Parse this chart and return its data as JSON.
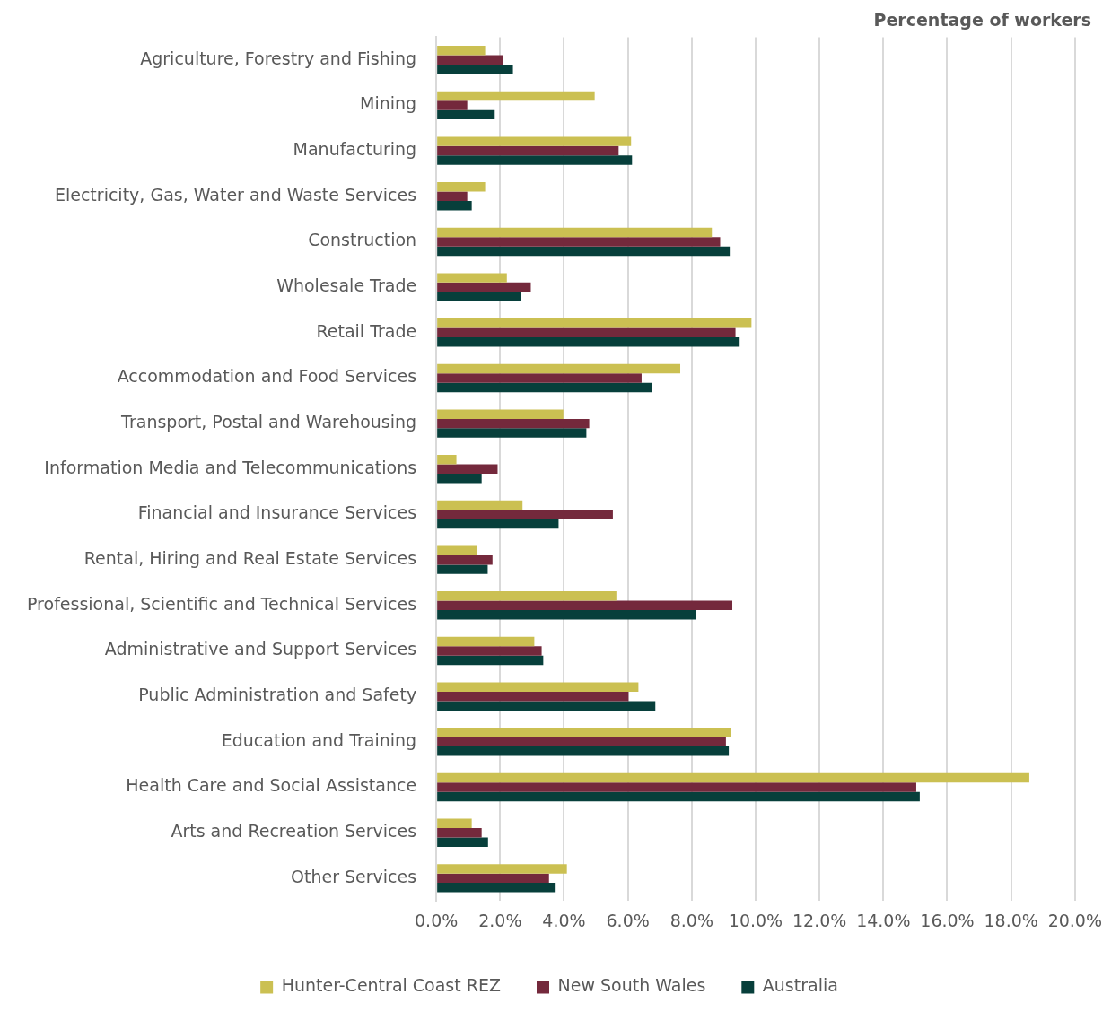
{
  "chart_data": {
    "type": "bar",
    "orientation": "horizontal",
    "title": "Percentage of workers",
    "categories": [
      "Agriculture, Forestry and Fishing",
      "Mining",
      "Manufacturing",
      "Electricity, Gas, Water and Waste Services",
      "Construction",
      "Wholesale Trade",
      "Retail Trade",
      "Accommodation and Food Services",
      "Transport, Postal and Warehousing",
      "Information Media and Telecommunications",
      "Financial and Insurance Services",
      "Rental, Hiring and Real Estate Services",
      "Professional, Scientific and Technical Services",
      "Administrative and Support Services",
      "Public Administration and Safety",
      "Education and Training",
      "Health Care and Social Assistance",
      "Arts and Recreation Services",
      "Other Services"
    ],
    "series": [
      {
        "name": "Hunter-Central Coast REZ",
        "color": "#cbc052",
        "values": [
          1.53,
          4.96,
          6.1,
          1.53,
          8.63,
          2.21,
          9.87,
          7.64,
          3.98,
          0.63,
          2.7,
          1.27,
          5.64,
          3.07,
          6.33,
          9.23,
          18.57,
          1.11,
          4.09
        ]
      },
      {
        "name": "New South Wales",
        "color": "#74293c",
        "values": [
          2.09,
          0.97,
          5.71,
          0.97,
          8.89,
          2.96,
          9.37,
          6.43,
          4.79,
          1.92,
          5.53,
          1.76,
          9.27,
          3.3,
          6.02,
          9.07,
          15.03,
          1.42,
          3.53
        ]
      },
      {
        "name": "Australia",
        "color": "#073f3b",
        "values": [
          2.4,
          1.83,
          6.13,
          1.11,
          9.19,
          2.66,
          9.5,
          6.75,
          4.7,
          1.42,
          3.83,
          1.61,
          8.13,
          3.35,
          6.86,
          9.16,
          15.14,
          1.62,
          3.71
        ]
      }
    ],
    "xlim": [
      0,
      20
    ],
    "xticks": [
      {
        "value": 0,
        "label": "0.0%"
      },
      {
        "value": 2,
        "label": "2.0%"
      },
      {
        "value": 4,
        "label": "4.0%"
      },
      {
        "value": 6,
        "label": "6.0%"
      },
      {
        "value": 8,
        "label": "8.0%"
      },
      {
        "value": 10,
        "label": "10.0%"
      },
      {
        "value": 12,
        "label": "12.0%"
      },
      {
        "value": 14,
        "label": "14.0%"
      },
      {
        "value": 16,
        "label": "16.0%"
      },
      {
        "value": 18,
        "label": "18.0%"
      },
      {
        "value": 20,
        "label": "20.0%"
      }
    ],
    "grid": "x",
    "legend": "bottom"
  }
}
